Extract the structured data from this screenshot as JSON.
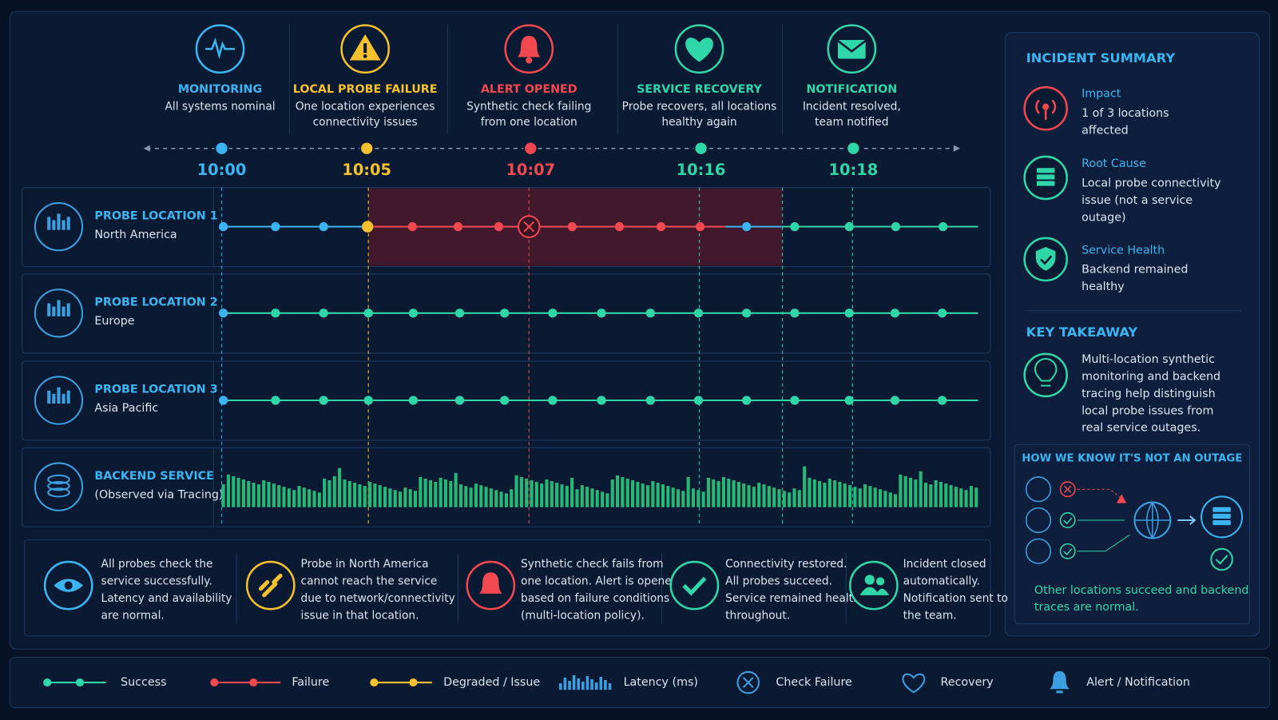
{
  "stages": [
    {
      "time": "10:00",
      "title": "MONITORING",
      "desc": [
        "All systems nominal"
      ]
    },
    {
      "time": "10:05",
      "title": "LOCAL PROBE FAILURE",
      "desc": [
        "One location experiences",
        "connectivity issues"
      ]
    },
    {
      "time": "10:07",
      "title": "ALERT OPENED",
      "desc": [
        "Synthetic check failing",
        "from one location"
      ]
    },
    {
      "time": "10:16",
      "title": "SERVICE RECOVERY",
      "desc": [
        "Probe recovers, all locations",
        "healthy again"
      ]
    },
    {
      "time": "10:18",
      "title": "NOTIFICATION",
      "desc": [
        "Incident resolved,",
        "team notified"
      ]
    }
  ],
  "lanes": [
    {
      "title": "PROBE LOCATION 1",
      "subtitle": "North America"
    },
    {
      "title": "PROBE LOCATION 2",
      "subtitle": "Europe"
    },
    {
      "title": "PROBE LOCATION 3",
      "subtitle": "Asia Pacific"
    },
    {
      "title": "BACKEND SERVICE",
      "subtitle": "(Observed via Tracing)"
    }
  ],
  "notes": [
    [
      "All probes check the",
      "service successfully.",
      "Latency and availability",
      "are normal."
    ],
    [
      "Probe in North America",
      "cannot reach the service",
      "due to network/connectivity",
      "issue in that location."
    ],
    [
      "Synthetic check fails from",
      "one location. Alert is opened",
      "based on failure conditions",
      "(multi-location policy)."
    ],
    [
      "Connectivity restored.",
      "All probes succeed.",
      "Service remained healthy",
      "throughout."
    ],
    [
      "Incident closed",
      "automatically.",
      "Notification sent to",
      "the team."
    ]
  ],
  "summary": {
    "title": "INCIDENT SUMMARY",
    "items": [
      {
        "title": "Impact",
        "text": [
          "1 of 3 locations",
          "affected"
        ]
      },
      {
        "title": "Root Cause",
        "text": [
          "Local probe connectivity",
          "issue (not a service",
          "outage)"
        ]
      },
      {
        "title": "Service Health",
        "text": [
          "Backend remained",
          "healthy"
        ]
      }
    ]
  },
  "takeaway": {
    "title": "KEY TAKEAWAY",
    "text": [
      "Multi-location synthetic",
      "monitoring and backend",
      "tracing help distinguish",
      "local probe issues from",
      "real service outages."
    ]
  },
  "outage": {
    "title": "HOW WE KNOW IT'S NOT AN OUTAGE",
    "text": [
      "Other locations succeed and backend",
      "traces are normal."
    ]
  },
  "legend": [
    "Success",
    "Failure",
    "Degraded / Issue",
    "Latency (ms)",
    "Check Failure",
    "Recovery",
    "Alert / Notification"
  ]
}
